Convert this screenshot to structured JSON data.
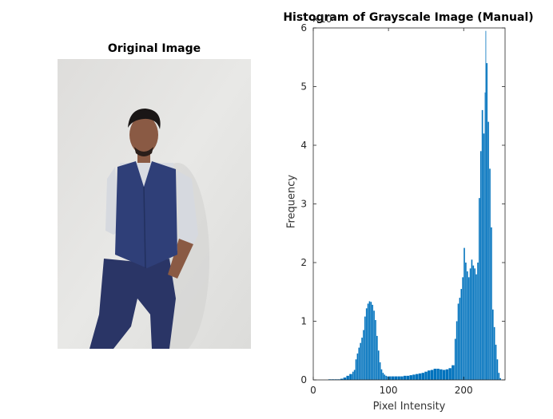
{
  "figure": {
    "left_title": "Original Image",
    "right_title": "Histogram of Grayscale Image (Manual)"
  },
  "colors": {
    "bar": "#0072BD",
    "axis": "#262626",
    "wall": "#e4e4e2",
    "vest": "#2f3f78",
    "trousers": "#2a3566",
    "shirt": "#d9dce2",
    "skin": "#8a5a44",
    "hair": "#1a1616"
  },
  "chart_data": {
    "type": "bar",
    "title": "Histogram of Grayscale Image (Manual)",
    "xlabel": "Pixel Intensity",
    "ylabel": "Frequency",
    "xlim": [
      0,
      255
    ],
    "ylim": [
      0,
      6
    ],
    "y_multiplier_label": "×10⁴",
    "xticks": [
      "0",
      "100",
      "200"
    ],
    "yticks": [
      "0",
      "1",
      "2",
      "3",
      "4",
      "5",
      "6"
    ],
    "grid": false,
    "points": [
      [
        20,
        0.01
      ],
      [
        24,
        0.01
      ],
      [
        28,
        0.01
      ],
      [
        32,
        0.01
      ],
      [
        36,
        0.02
      ],
      [
        40,
        0.04
      ],
      [
        44,
        0.07
      ],
      [
        48,
        0.1
      ],
      [
        52,
        0.14
      ],
      [
        54,
        0.17
      ],
      [
        56,
        0.35
      ],
      [
        58,
        0.45
      ],
      [
        60,
        0.55
      ],
      [
        62,
        0.63
      ],
      [
        64,
        0.72
      ],
      [
        66,
        0.85
      ],
      [
        68,
        1.08
      ],
      [
        70,
        1.22
      ],
      [
        72,
        1.3
      ],
      [
        74,
        1.34
      ],
      [
        76,
        1.33
      ],
      [
        78,
        1.28
      ],
      [
        80,
        1.18
      ],
      [
        82,
        1.02
      ],
      [
        84,
        0.75
      ],
      [
        86,
        0.5
      ],
      [
        88,
        0.3
      ],
      [
        90,
        0.18
      ],
      [
        92,
        0.12
      ],
      [
        94,
        0.09
      ],
      [
        96,
        0.07
      ],
      [
        98,
        0.06
      ],
      [
        100,
        0.06
      ],
      [
        104,
        0.06
      ],
      [
        108,
        0.06
      ],
      [
        112,
        0.06
      ],
      [
        116,
        0.06
      ],
      [
        120,
        0.07
      ],
      [
        124,
        0.07
      ],
      [
        128,
        0.08
      ],
      [
        132,
        0.09
      ],
      [
        136,
        0.1
      ],
      [
        140,
        0.11
      ],
      [
        144,
        0.12
      ],
      [
        148,
        0.14
      ],
      [
        152,
        0.16
      ],
      [
        156,
        0.17
      ],
      [
        160,
        0.19
      ],
      [
        164,
        0.19
      ],
      [
        168,
        0.18
      ],
      [
        172,
        0.17
      ],
      [
        176,
        0.18
      ],
      [
        180,
        0.2
      ],
      [
        184,
        0.25
      ],
      [
        188,
        0.7
      ],
      [
        190,
        1.0
      ],
      [
        192,
        1.3
      ],
      [
        194,
        1.4
      ],
      [
        196,
        1.55
      ],
      [
        198,
        1.75
      ],
      [
        200,
        2.25
      ],
      [
        202,
        2.0
      ],
      [
        204,
        1.85
      ],
      [
        206,
        1.75
      ],
      [
        208,
        1.9
      ],
      [
        210,
        2.05
      ],
      [
        212,
        1.95
      ],
      [
        214,
        1.9
      ],
      [
        216,
        1.8
      ],
      [
        218,
        2.0
      ],
      [
        220,
        3.1
      ],
      [
        222,
        3.9
      ],
      [
        224,
        4.6
      ],
      [
        226,
        4.2
      ],
      [
        228,
        4.9
      ],
      [
        229,
        5.95
      ],
      [
        230,
        5.4
      ],
      [
        232,
        4.4
      ],
      [
        234,
        3.6
      ],
      [
        236,
        2.6
      ],
      [
        238,
        1.2
      ],
      [
        240,
        0.9
      ],
      [
        242,
        0.6
      ],
      [
        244,
        0.35
      ],
      [
        246,
        0.12
      ],
      [
        248,
        0.03
      ]
    ]
  }
}
